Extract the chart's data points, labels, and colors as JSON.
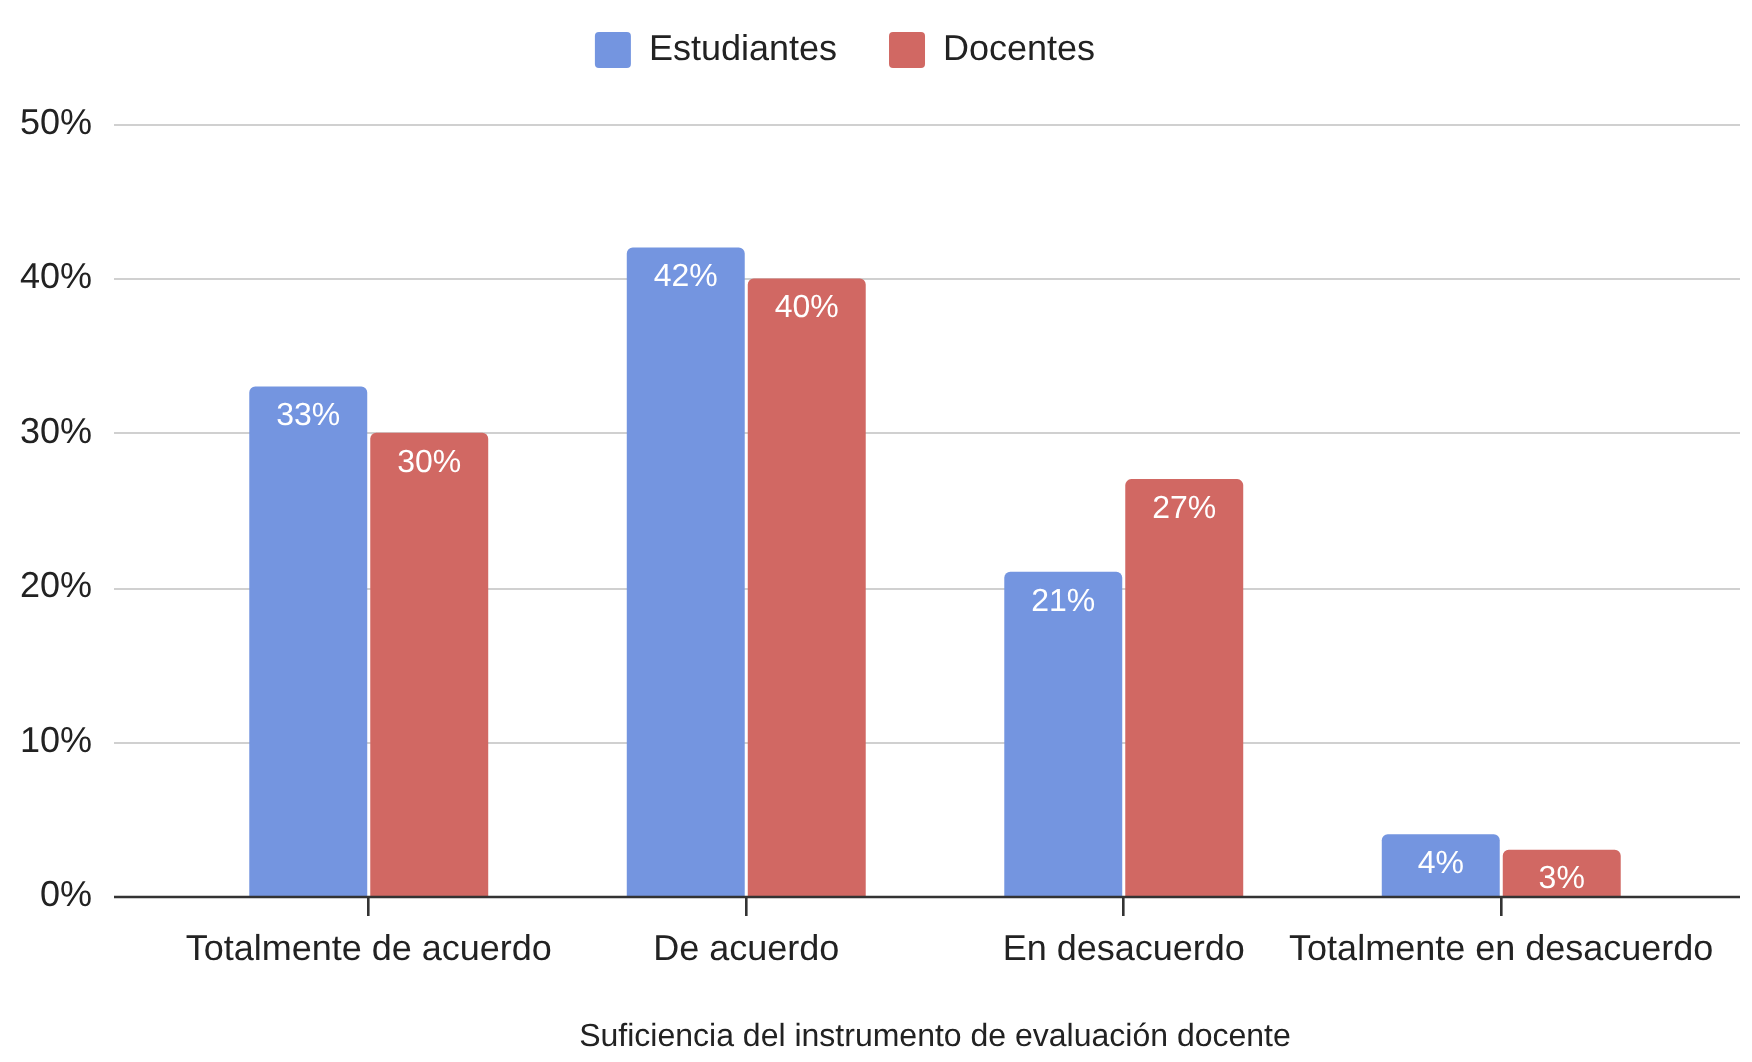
{
  "chart_data": {
    "type": "bar",
    "xlabel": "Suficiencia del instrumento de evaluación docente",
    "categories": [
      "Totalmente de acuerdo",
      "De acuerdo",
      "En desacuerdo",
      "Totalmente en desacuerdo"
    ],
    "series": [
      {
        "name": "Estudiantes",
        "color": "#7495e0",
        "values": [
          33,
          42,
          21,
          4
        ],
        "value_labels": [
          "33%",
          "42%",
          "21%",
          "4%"
        ]
      },
      {
        "name": "Docentes",
        "color": "#d16863",
        "values": [
          30,
          40,
          27,
          3
        ],
        "value_labels": [
          "30%",
          "40%",
          "27%",
          "3%"
        ]
      }
    ],
    "ylim": [
      0,
      50
    ],
    "yticks": [
      {
        "value": 0,
        "label": "0%"
      },
      {
        "value": 10,
        "label": "10%"
      },
      {
        "value": 20,
        "label": "20%"
      },
      {
        "value": 30,
        "label": "30%"
      },
      {
        "value": 40,
        "label": "40%"
      },
      {
        "value": 50,
        "label": "50%"
      }
    ],
    "grid": "y",
    "legend": "top"
  }
}
